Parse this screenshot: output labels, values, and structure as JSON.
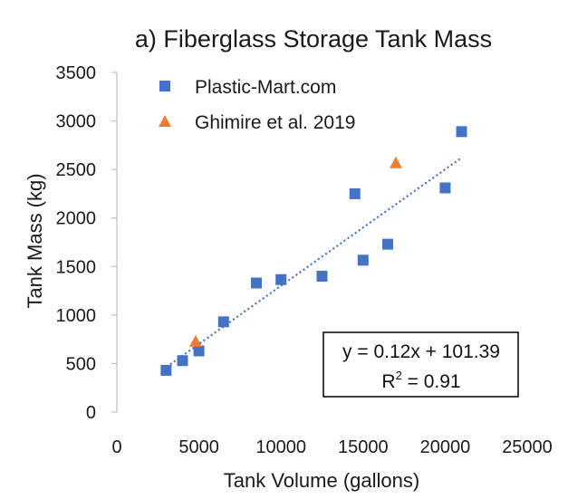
{
  "chart_data": {
    "type": "scatter",
    "title": "a) Fiberglass Storage Tank Mass",
    "xlabel": "Tank Volume (gallons)",
    "ylabel": "Tank Mass (kg)",
    "xlim": [
      0,
      25000
    ],
    "ylim": [
      0,
      3500
    ],
    "xticks": [
      0,
      5000,
      10000,
      15000,
      20000,
      25000
    ],
    "yticks": [
      0,
      500,
      1000,
      1500,
      2000,
      2500,
      3000,
      3500
    ],
    "grid": false,
    "legend_position": "top-left",
    "series": [
      {
        "name": "Plastic-Mart.com",
        "marker": "square",
        "color": "#4472C4",
        "points": [
          [
            3000,
            430
          ],
          [
            4000,
            530
          ],
          [
            5000,
            630
          ],
          [
            6500,
            930
          ],
          [
            8500,
            1330
          ],
          [
            10000,
            1365
          ],
          [
            12500,
            1400
          ],
          [
            14500,
            2250
          ],
          [
            15000,
            1565
          ],
          [
            16500,
            1730
          ],
          [
            20000,
            2310
          ],
          [
            21000,
            2890
          ]
        ]
      },
      {
        "name": "Ghimire et al. 2019",
        "marker": "triangle",
        "color": "#ED7D31",
        "points": [
          [
            4800,
            720
          ],
          [
            17000,
            2560
          ]
        ]
      }
    ],
    "trendline": {
      "slope": 0.12,
      "intercept": 101.39,
      "x_range": [
        2800,
        21000
      ],
      "style": "dotted",
      "color": "#4472C4"
    },
    "annotation": {
      "equation": "y = 0.12x + 101.39",
      "r2_label": "R",
      "r2_sup": "2",
      "r2_value": " = 0.91"
    }
  }
}
